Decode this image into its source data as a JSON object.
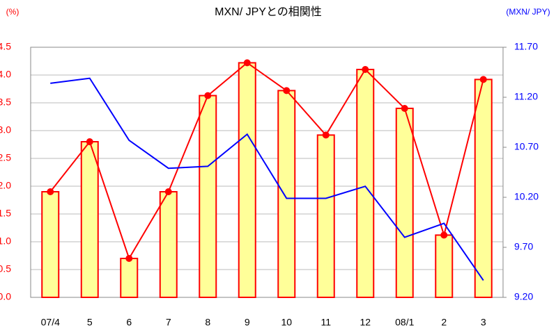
{
  "chart_data": {
    "type": "bar_line",
    "title": "MXN/ JPYとの相関性",
    "y_label": "(%)",
    "y2_label": "(MXN/ JPY)",
    "categories": [
      "07/4",
      "5",
      "6",
      "7",
      "8",
      "9",
      "10",
      "11",
      "12",
      "08/1",
      "2",
      "3"
    ],
    "series": [
      {
        "color": "#ff0000",
        "fill": "#ffff99",
        "values": [
          1.9,
          2.8,
          0.7,
          1.9,
          3.63,
          4.22,
          3.72,
          2.92,
          4.1,
          3.4,
          1.12,
          3.92
        ]
      },
      {
        "color": "#0000ff",
        "axis": "y2",
        "values": [
          11.34,
          11.39,
          10.77,
          10.49,
          10.51,
          10.83,
          10.19,
          10.19,
          10.31,
          9.8,
          9.94,
          9.37
        ]
      }
    ],
    "ylim": [
      0,
      4.5
    ],
    "yticks": [
      {
        "value": 0,
        "label": "0.0"
      },
      {
        "value": 0.5,
        "label": "0.5"
      },
      {
        "value": 1,
        "label": "1.0"
      },
      {
        "value": 1.5,
        "label": "1.5"
      },
      {
        "value": 2,
        "label": "2.0"
      },
      {
        "value": 2.5,
        "label": "2.5"
      },
      {
        "value": 3,
        "label": "3.0"
      },
      {
        "value": 3.5,
        "label": "3.5"
      },
      {
        "value": 4,
        "label": "4.0"
      },
      {
        "value": 4.5,
        "label": "4.5"
      }
    ],
    "y2lim": [
      9.2,
      11.7
    ],
    "y2ticks": [
      {
        "value": 9.2,
        "label": "9.20"
      },
      {
        "value": 9.7,
        "label": "9.70"
      },
      {
        "value": 10.2,
        "label": "10.20"
      },
      {
        "value": 10.7,
        "label": "10.70"
      },
      {
        "value": 11.2,
        "label": "11.20"
      },
      {
        "value": 11.7,
        "label": "11.70"
      }
    ],
    "grid": true
  }
}
